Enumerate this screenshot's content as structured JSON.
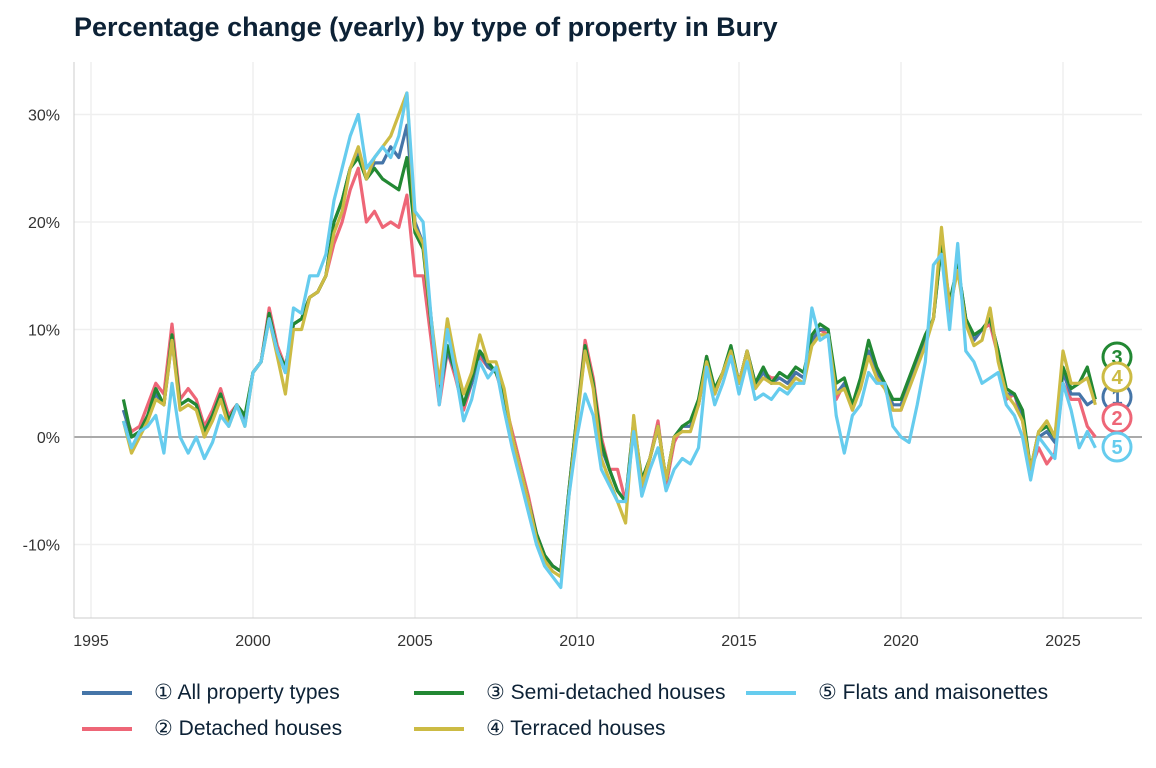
{
  "title": "Percentage change (yearly) by type of property in Bury",
  "chart_data": {
    "type": "line",
    "title": "Percentage change (yearly) by type of property in Bury",
    "x_start": 1996,
    "x_step": 0.25,
    "xlim": [
      1994.5,
      2027.3
    ],
    "ylim": [
      -16.8,
      34.5
    ],
    "x_ticks": [
      1995,
      2000,
      2005,
      2010,
      2015,
      2020,
      2025
    ],
    "x_tick_labels": [
      "1995",
      "2000",
      "2005",
      "2010",
      "2015",
      "2020",
      "2025"
    ],
    "y_ticks": [
      -10,
      0,
      10,
      20,
      30
    ],
    "y_tick_labels": [
      "-10%",
      "0%",
      "10%",
      "20%",
      "30%"
    ],
    "grid": true,
    "legend_position": "bottom",
    "series": [
      {
        "name": "① All property types",
        "end_label": "1",
        "color": "#4575a8",
        "values": [
          2.5,
          0,
          0.5,
          2,
          4,
          3,
          9,
          3,
          3.5,
          3,
          0.5,
          2,
          4,
          1.5,
          3,
          1.5,
          6,
          7,
          11.5,
          8,
          6,
          10.5,
          11,
          13,
          13.5,
          15,
          20,
          22,
          25,
          26.5,
          24,
          25.5,
          25.5,
          27,
          26,
          29,
          20,
          18,
          11,
          4,
          8,
          6,
          3,
          5,
          8,
          6.5,
          6,
          4,
          0,
          -3,
          -6,
          -9,
          -11,
          -12,
          -12.5,
          -5,
          2,
          8,
          5,
          -1,
          -3,
          -5,
          -6,
          1,
          -4,
          -2,
          1,
          -4,
          0,
          1,
          1,
          3,
          7,
          4,
          6,
          8,
          5,
          8,
          5,
          6,
          5,
          5.5,
          5,
          6,
          5.5,
          9,
          10,
          10,
          4,
          5,
          3,
          5,
          8,
          6,
          5,
          3,
          3,
          5,
          7,
          9,
          11,
          18,
          12,
          16,
          11,
          9,
          10,
          11,
          8,
          4,
          4,
          2,
          -3,
          0,
          0.5,
          -0.5,
          6,
          4,
          4,
          3,
          3.5
        ]
      },
      {
        "name": "② Detached houses",
        "end_label": "2",
        "color": "#ee6677",
        "values": [
          2.5,
          0.5,
          1,
          3,
          5,
          4,
          10.5,
          3.5,
          4.5,
          3.5,
          1,
          2.5,
          4.5,
          2,
          3,
          1.5,
          6,
          7,
          12,
          8.5,
          6.5,
          10.5,
          11,
          13,
          13.5,
          15,
          18,
          20,
          23,
          25,
          20,
          21,
          19.5,
          20,
          19.5,
          22.5,
          15,
          15,
          9,
          3,
          8,
          5.5,
          2.5,
          5,
          7.5,
          6.5,
          6,
          3.5,
          0.5,
          -2.5,
          -5.5,
          -9,
          -11,
          -12,
          -12.5,
          -5,
          2,
          9,
          5.5,
          0,
          -3,
          -3,
          -6,
          1.5,
          -5,
          -2,
          1.5,
          -4.5,
          -0.5,
          1,
          1,
          3,
          7.5,
          4,
          6,
          8,
          5,
          8,
          5,
          6,
          5.5,
          5.5,
          5,
          6,
          5.5,
          9,
          10,
          9.5,
          3.5,
          5,
          2.5,
          5,
          8,
          6,
          5,
          2.5,
          2.5,
          5,
          7,
          9,
          11,
          18.5,
          11.5,
          16,
          10.5,
          9,
          10,
          10.5,
          7.5,
          3.5,
          4,
          1.5,
          -3,
          -1,
          -2.5,
          -1.5,
          5,
          3.5,
          3.5,
          1,
          0
        ]
      },
      {
        "name": "③ Semi-detached houses",
        "end_label": "3",
        "color": "#228833",
        "values": [
          3.5,
          0,
          0.5,
          2,
          4.5,
          3,
          9.5,
          3,
          3.5,
          3,
          0.5,
          2,
          4,
          1.5,
          3,
          2,
          6,
          7,
          11.5,
          8,
          6.5,
          10.5,
          11,
          13,
          13.5,
          15,
          20,
          22,
          25,
          26,
          24,
          25,
          24,
          23.5,
          23,
          26,
          19,
          17.5,
          10.5,
          4,
          8.5,
          6,
          3,
          5.5,
          8,
          7,
          6,
          4,
          0,
          -3,
          -6,
          -9,
          -11,
          -12,
          -12.5,
          -5,
          2,
          8.5,
          5,
          -0.5,
          -3,
          -5,
          -6,
          1.5,
          -4,
          -2,
          1,
          -4,
          0,
          1,
          1.5,
          3.5,
          7.5,
          4.5,
          6,
          8.5,
          5,
          8,
          5,
          6.5,
          5,
          6,
          5.5,
          6.5,
          6,
          9.5,
          10.5,
          10,
          5,
          5.5,
          3,
          5.5,
          9,
          6.5,
          5,
          3.5,
          3.5,
          5.5,
          7.5,
          9.5,
          11,
          18,
          12.5,
          16,
          11,
          9.5,
          10,
          11,
          8,
          4.5,
          4,
          2.5,
          -3,
          0.5,
          1,
          0,
          6.5,
          4.5,
          5,
          6.5,
          3.5
        ]
      },
      {
        "name": "④ Terraced houses",
        "end_label": "4",
        "color": "#ccbb44",
        "values": [
          1.5,
          -1.5,
          0,
          1.5,
          3.5,
          3,
          9,
          2.5,
          3,
          2.5,
          0,
          1.5,
          3.5,
          1,
          3,
          1,
          6,
          7,
          11,
          7.5,
          4,
          10,
          10,
          13,
          13.5,
          15,
          19,
          21,
          25,
          27,
          24,
          26,
          27,
          28,
          30,
          32,
          19.5,
          18,
          11,
          5,
          11,
          7,
          4,
          6,
          9.5,
          7,
          7,
          4.5,
          0,
          -3,
          -6,
          -9.5,
          -11.5,
          -12.5,
          -13,
          -5.5,
          1.5,
          8,
          4.5,
          -2,
          -4,
          -6,
          -8,
          2,
          -4.5,
          -2,
          1,
          -4,
          0,
          0.5,
          0.5,
          3,
          7,
          4,
          6,
          8,
          5,
          8,
          4.5,
          5.5,
          5,
          5,
          4.5,
          5.5,
          5,
          8.5,
          9.5,
          9.5,
          4,
          4.5,
          2.5,
          4.5,
          7.5,
          5.5,
          4.5,
          2.5,
          2.5,
          4.5,
          6.5,
          8.5,
          11,
          19.5,
          12,
          15.5,
          10.5,
          8.5,
          9,
          12,
          7,
          4,
          3,
          1.5,
          -3,
          0.5,
          1.5,
          0,
          8,
          5,
          5,
          5.5,
          3
        ]
      },
      {
        "name": "⑤ Flats and maisonettes",
        "end_label": "5",
        "color": "#66ccee",
        "values": [
          1.5,
          -1,
          0.5,
          1,
          2,
          -1.5,
          5,
          0,
          -1.5,
          0,
          -2,
          -0.5,
          2,
          1,
          3,
          1,
          6,
          7,
          11,
          8,
          6,
          12,
          11.5,
          15,
          15,
          17,
          22,
          25,
          28,
          30,
          25,
          26,
          27,
          26,
          28,
          32,
          21,
          20,
          11,
          3,
          10,
          6,
          1.5,
          3.5,
          7,
          5.5,
          6.5,
          2.5,
          -1,
          -4,
          -7,
          -10,
          -12,
          -13,
          -14,
          -5.5,
          0,
          4,
          2,
          -3,
          -4.5,
          -6,
          -6,
          0.5,
          -5.5,
          -3,
          -1,
          -5,
          -3,
          -2,
          -2.5,
          -1,
          6.5,
          3,
          5,
          7.5,
          4,
          7,
          3.5,
          4,
          3.5,
          4.5,
          4,
          5,
          5,
          12,
          9,
          9.5,
          2,
          -1.5,
          2,
          3,
          6,
          5,
          5,
          1,
          0,
          -0.5,
          3,
          7,
          16,
          17,
          10,
          18,
          8,
          7,
          5,
          5.5,
          6,
          3,
          2,
          0,
          -4,
          0,
          -1,
          -2,
          5,
          2.5,
          -1,
          0.5,
          -1
        ]
      }
    ]
  }
}
